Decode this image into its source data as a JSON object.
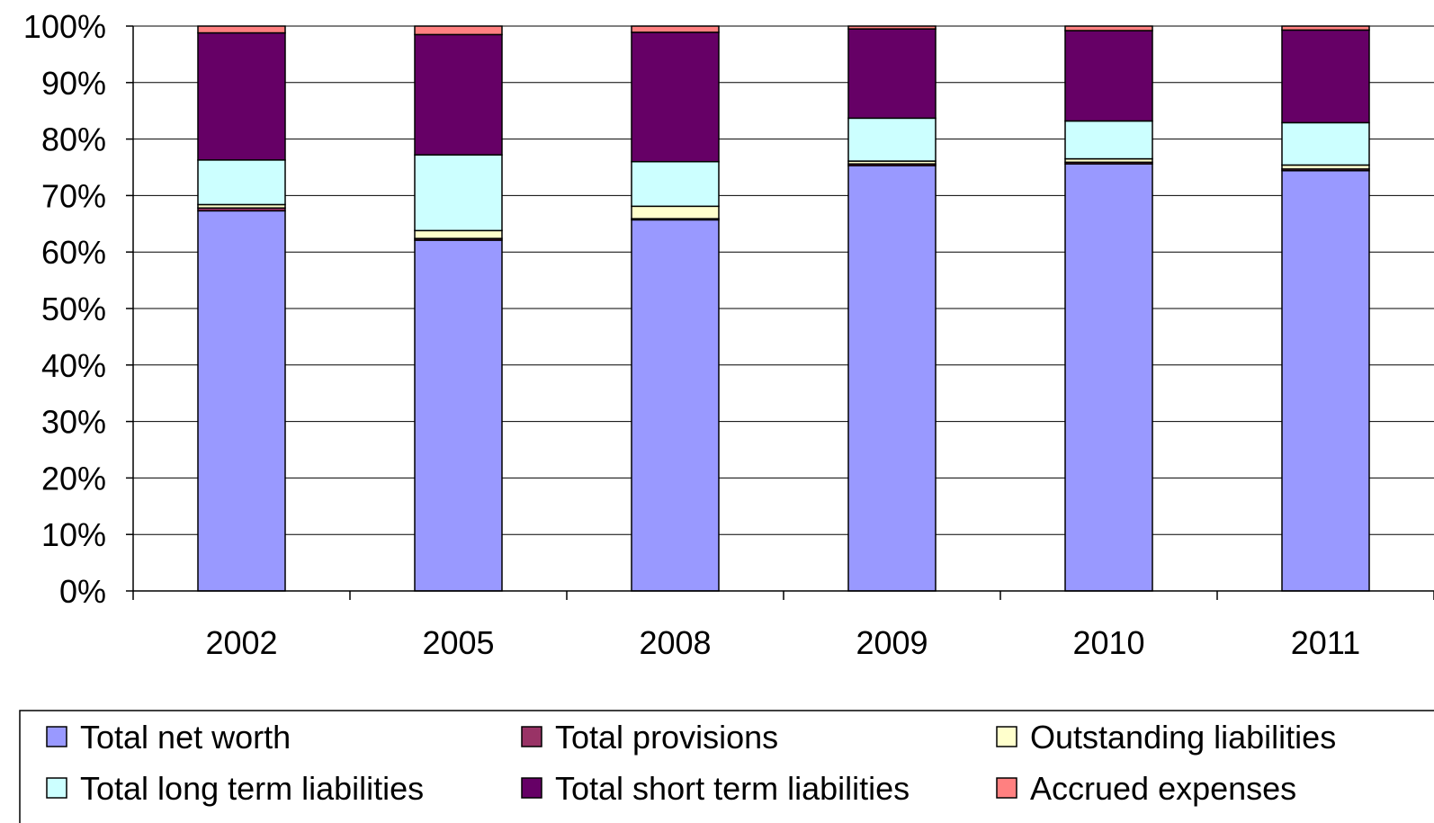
{
  "chart_data": {
    "type": "bar",
    "stacked": true,
    "percent": true,
    "categories": [
      "2002",
      "2005",
      "2008",
      "2009",
      "2010",
      "2011"
    ],
    "ylim": [
      0,
      100
    ],
    "yticks": [
      "0%",
      "10%",
      "20%",
      "30%",
      "40%",
      "50%",
      "60%",
      "70%",
      "80%",
      "90%",
      "100%"
    ],
    "grid": true,
    "legend_position": "bottom",
    "series": [
      {
        "name": "Total net worth",
        "color": "#9999ff",
        "values": [
          67.3,
          62.1,
          65.7,
          75.3,
          75.6,
          74.4
        ]
      },
      {
        "name": "Total provisions",
        "color": "#993366",
        "values": [
          0.5,
          0.3,
          0.2,
          0.3,
          0.3,
          0.3
        ]
      },
      {
        "name": "Outstanding liabilities",
        "color": "#ffffcc",
        "values": [
          0.6,
          1.4,
          2.2,
          0.5,
          0.6,
          0.7
        ]
      },
      {
        "name": "Total long term liabilities",
        "color": "#ccffff",
        "values": [
          7.9,
          13.4,
          7.9,
          7.6,
          6.7,
          7.5
        ]
      },
      {
        "name": "Total short term liabilities",
        "color": "#660066",
        "values": [
          22.5,
          21.3,
          22.9,
          15.8,
          16.0,
          16.4
        ]
      },
      {
        "name": "Accrued expenses",
        "color": "#ff8080",
        "values": [
          1.2,
          1.5,
          1.1,
          0.5,
          0.8,
          0.7
        ]
      }
    ],
    "legend_order": [
      0,
      1,
      2,
      3,
      4,
      5
    ]
  }
}
